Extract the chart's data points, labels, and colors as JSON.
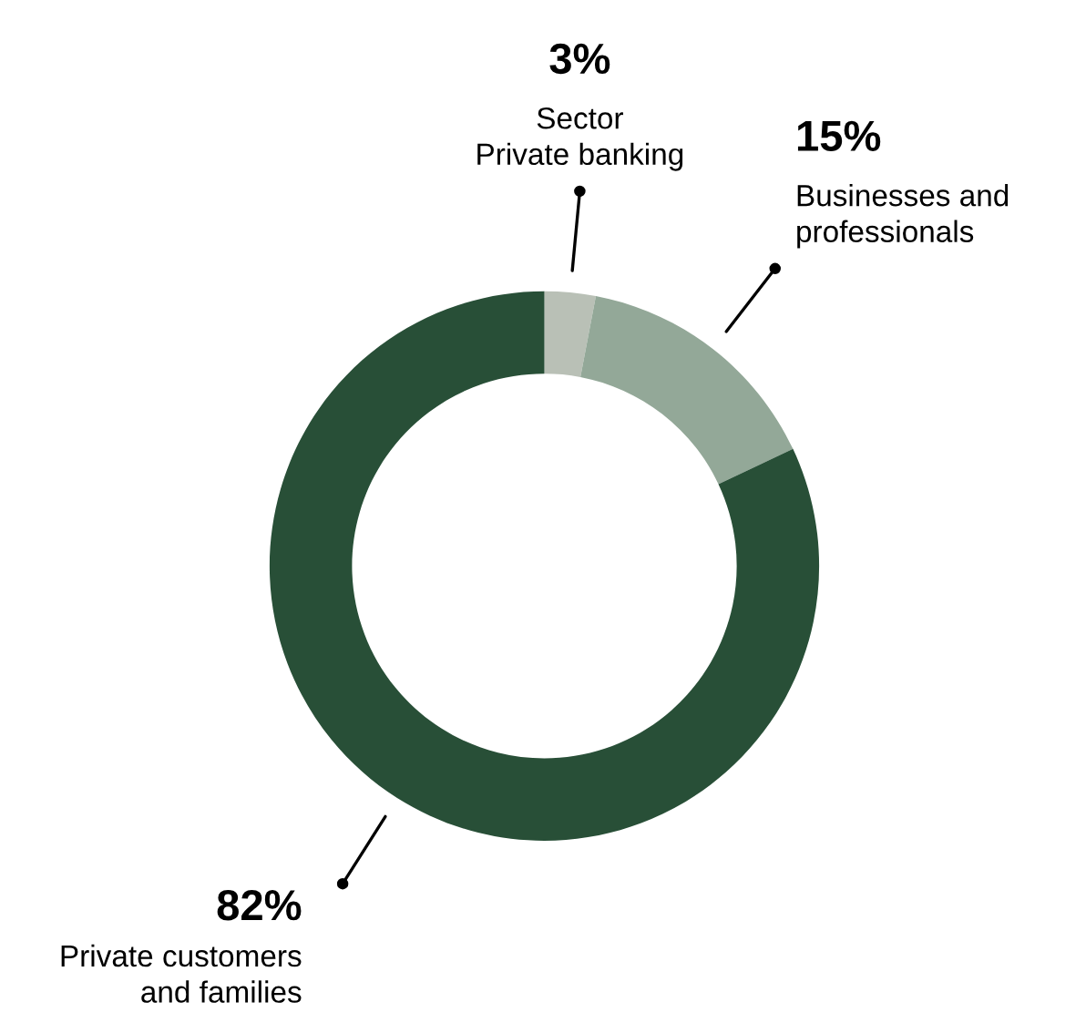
{
  "chart_data": {
    "type": "donut",
    "categories": [
      "Sector\nPrivate banking",
      "Businesses and\nprofessionals",
      "Private customers\nand families"
    ],
    "values": [
      3,
      15,
      82
    ],
    "value_labels": [
      "3%",
      "15%",
      "82%"
    ],
    "colors": [
      "#b9c0b6",
      "#93a898",
      "#284f37"
    ],
    "legend": false
  }
}
